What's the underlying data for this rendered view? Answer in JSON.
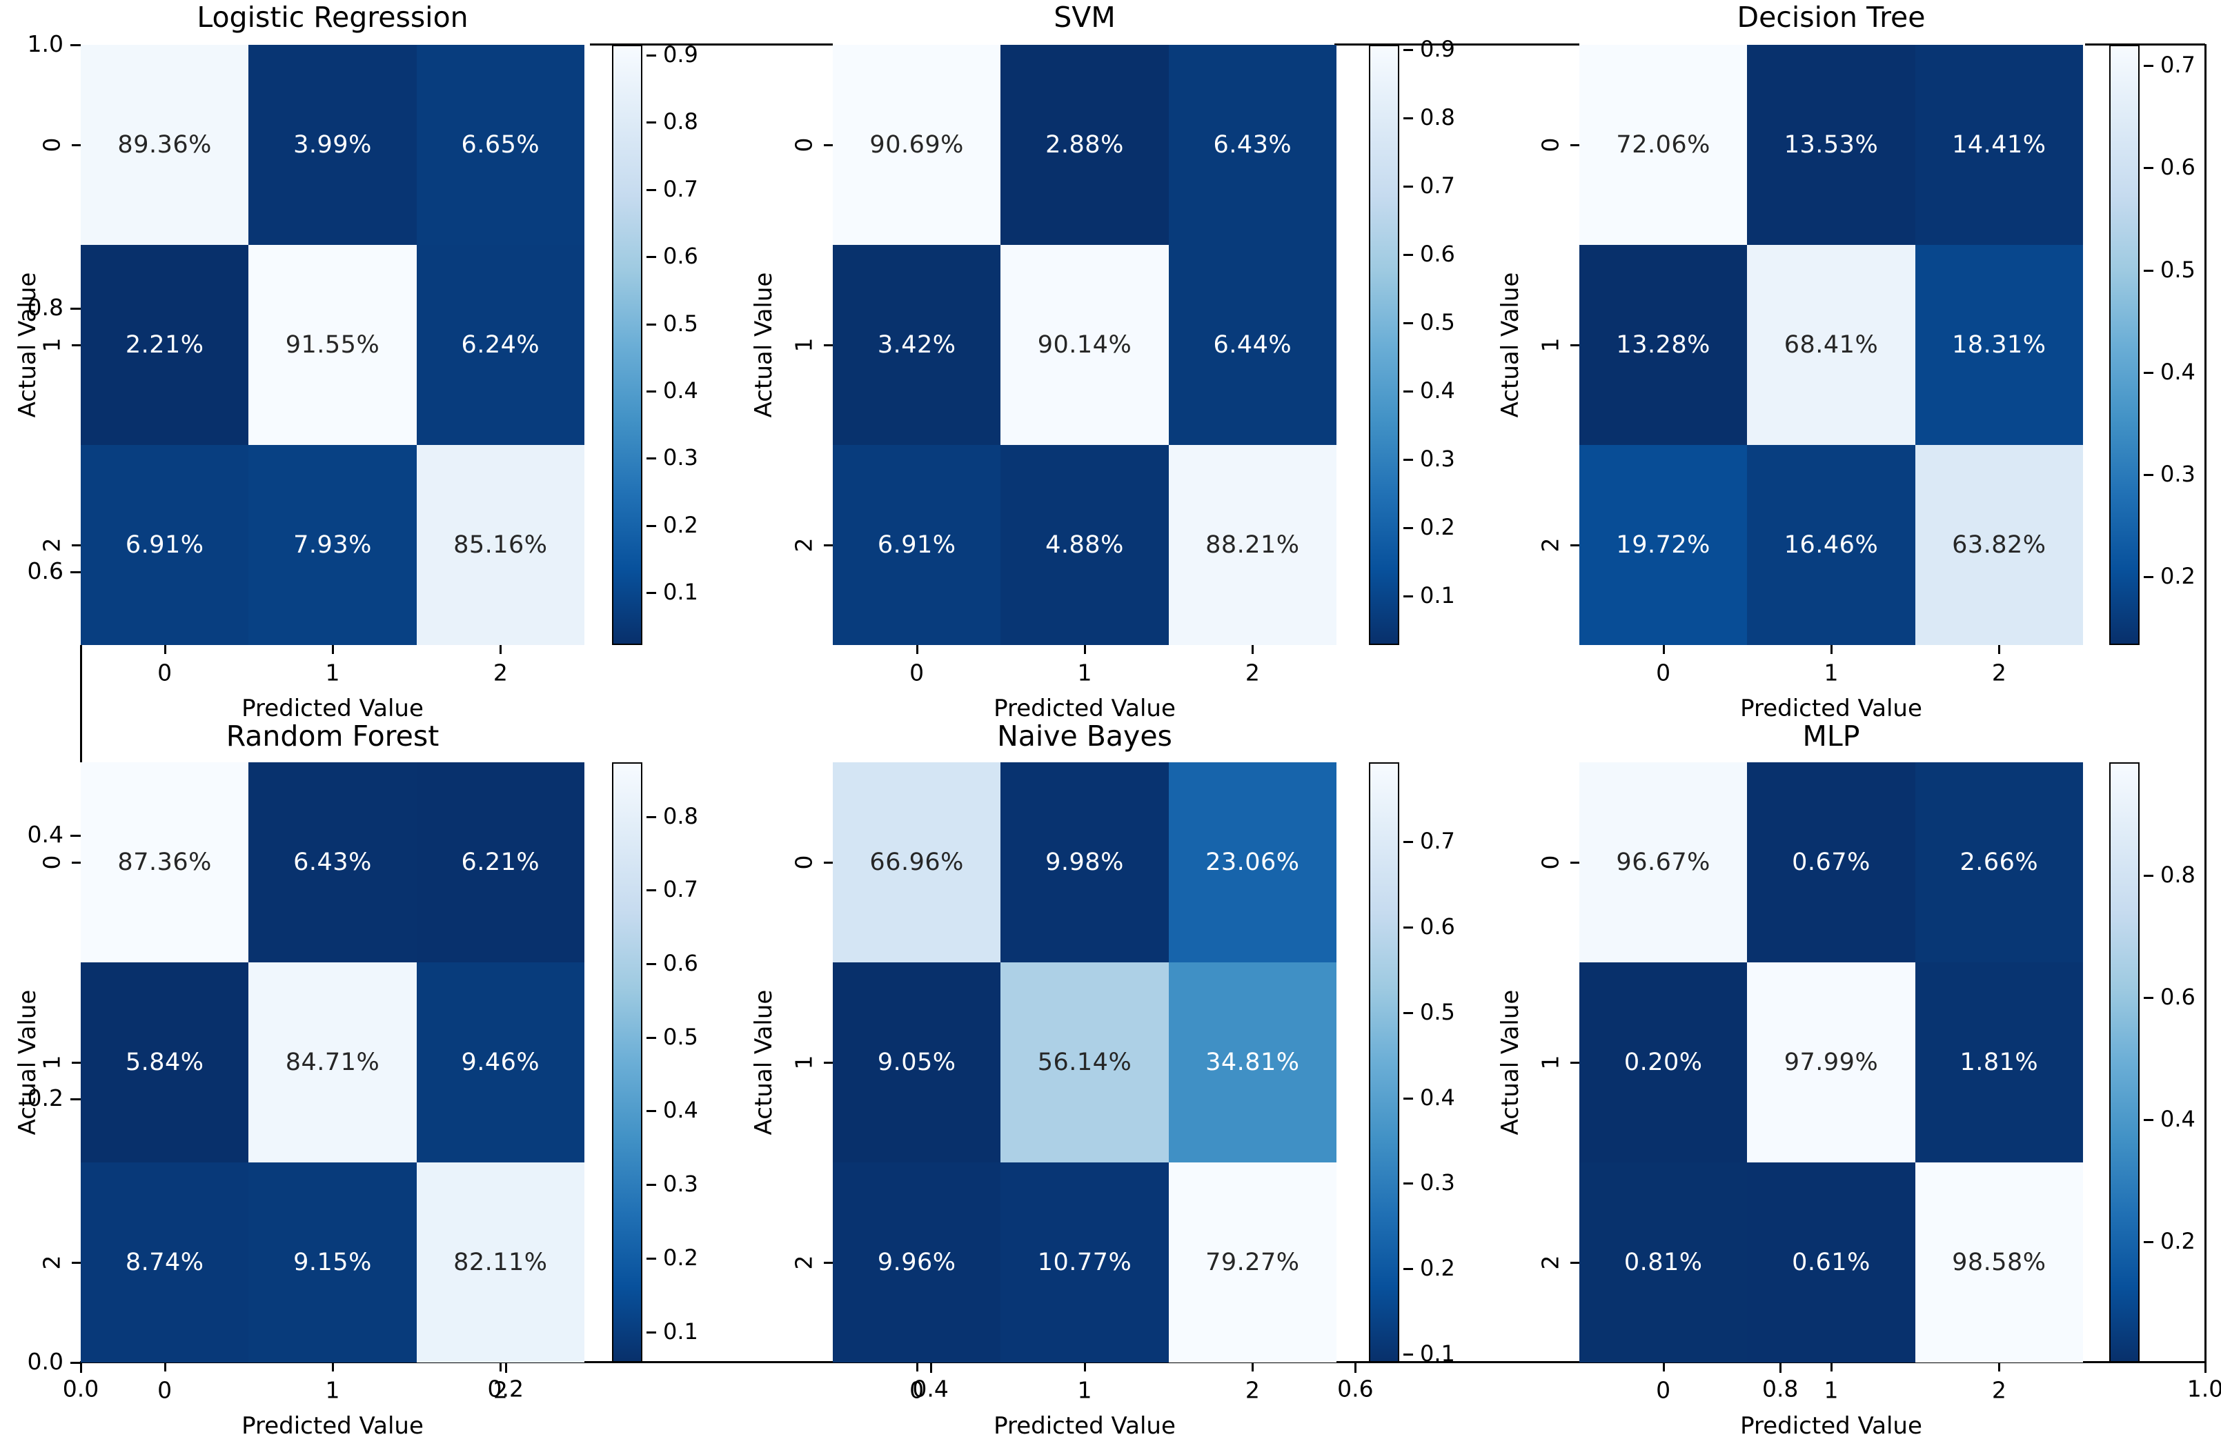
{
  "figure": {
    "background": "#ffffff",
    "xlabel": "Predicted Value",
    "ylabel": "Actual Value",
    "class_labels": [
      "0",
      "1",
      "2"
    ],
    "annotation_dark_text": "#262626",
    "annotation_light_text": "#ffffff",
    "colormap": "Blues_r",
    "colormap_anchors": [
      "#f7fbff",
      "#deebf7",
      "#c6dbef",
      "#9ecae1",
      "#6baed6",
      "#4292c6",
      "#2171b5",
      "#08519c",
      "#08306b"
    ]
  },
  "outer_axes": {
    "y_tick_labels": [
      "1.0",
      "0.8",
      "0.6",
      "0.4",
      "0.2",
      "0.0"
    ],
    "x_tick_labels": [
      "0.0",
      "0.2",
      "0.4",
      "0.6",
      "0.8",
      "1.0"
    ]
  },
  "chart_data": [
    {
      "type": "heatmap",
      "title": "Logistic Regression",
      "row": 0,
      "col": 0,
      "x_categories": [
        "0",
        "1",
        "2"
      ],
      "y_categories": [
        "0",
        "1",
        "2"
      ],
      "xlabel": "Predicted Value",
      "ylabel": "Actual Value",
      "values_percent": [
        [
          89.36,
          3.99,
          6.65
        ],
        [
          2.21,
          91.55,
          6.24
        ],
        [
          6.91,
          7.93,
          85.16
        ]
      ],
      "colorbar_tick_labels": [
        "0.9",
        "0.8",
        "0.7",
        "0.6",
        "0.5",
        "0.4",
        "0.3",
        "0.2",
        "0.1"
      ]
    },
    {
      "type": "heatmap",
      "title": "SVM",
      "row": 0,
      "col": 1,
      "x_categories": [
        "0",
        "1",
        "2"
      ],
      "y_categories": [
        "0",
        "1",
        "2"
      ],
      "xlabel": "Predicted Value",
      "ylabel": "Actual Value",
      "values_percent": [
        [
          90.69,
          2.88,
          6.43
        ],
        [
          3.42,
          90.14,
          6.44
        ],
        [
          6.91,
          4.88,
          88.21
        ]
      ],
      "colorbar_tick_labels": [
        "0.9",
        "0.8",
        "0.7",
        "0.6",
        "0.5",
        "0.4",
        "0.3",
        "0.2",
        "0.1"
      ]
    },
    {
      "type": "heatmap",
      "title": "Decision Tree",
      "row": 0,
      "col": 2,
      "x_categories": [
        "0",
        "1",
        "2"
      ],
      "y_categories": [
        "0",
        "1",
        "2"
      ],
      "xlabel": "Predicted Value",
      "ylabel": "Actual Value",
      "values_percent": [
        [
          72.06,
          13.53,
          14.41
        ],
        [
          13.28,
          68.41,
          18.31
        ],
        [
          19.72,
          16.46,
          63.82
        ]
      ],
      "colorbar_tick_labels": [
        "0.7",
        "0.6",
        "0.5",
        "0.4",
        "0.3",
        "0.2"
      ]
    },
    {
      "type": "heatmap",
      "title": "Random Forest",
      "row": 1,
      "col": 0,
      "x_categories": [
        "0",
        "1",
        "2"
      ],
      "y_categories": [
        "0",
        "1",
        "2"
      ],
      "xlabel": "Predicted Value",
      "ylabel": "Actual Value",
      "values_percent": [
        [
          87.36,
          6.43,
          6.21
        ],
        [
          5.84,
          84.71,
          9.46
        ],
        [
          8.74,
          9.15,
          82.11
        ]
      ],
      "colorbar_tick_labels": [
        "0.8",
        "0.7",
        "0.6",
        "0.5",
        "0.4",
        "0.3",
        "0.2",
        "0.1"
      ]
    },
    {
      "type": "heatmap",
      "title": "Naive Bayes",
      "row": 1,
      "col": 1,
      "x_categories": [
        "0",
        "1",
        "2"
      ],
      "y_categories": [
        "0",
        "1",
        "2"
      ],
      "xlabel": "Predicted Value",
      "ylabel": "Actual Value",
      "values_percent": [
        [
          66.96,
          9.98,
          23.06
        ],
        [
          9.05,
          56.14,
          34.81
        ],
        [
          9.96,
          10.77,
          79.27
        ]
      ],
      "colorbar_tick_labels": [
        "0.7",
        "0.6",
        "0.5",
        "0.4",
        "0.3",
        "0.2",
        "0.1"
      ]
    },
    {
      "type": "heatmap",
      "title": "MLP",
      "row": 1,
      "col": 2,
      "x_categories": [
        "0",
        "1",
        "2"
      ],
      "y_categories": [
        "0",
        "1",
        "2"
      ],
      "xlabel": "Predicted Value",
      "ylabel": "Actual Value",
      "values_percent": [
        [
          96.67,
          0.67,
          2.66
        ],
        [
          0.2,
          97.99,
          1.81
        ],
        [
          0.81,
          0.61,
          98.58
        ]
      ],
      "colorbar_tick_labels": [
        "0.8",
        "0.6",
        "0.4",
        "0.2"
      ]
    }
  ]
}
